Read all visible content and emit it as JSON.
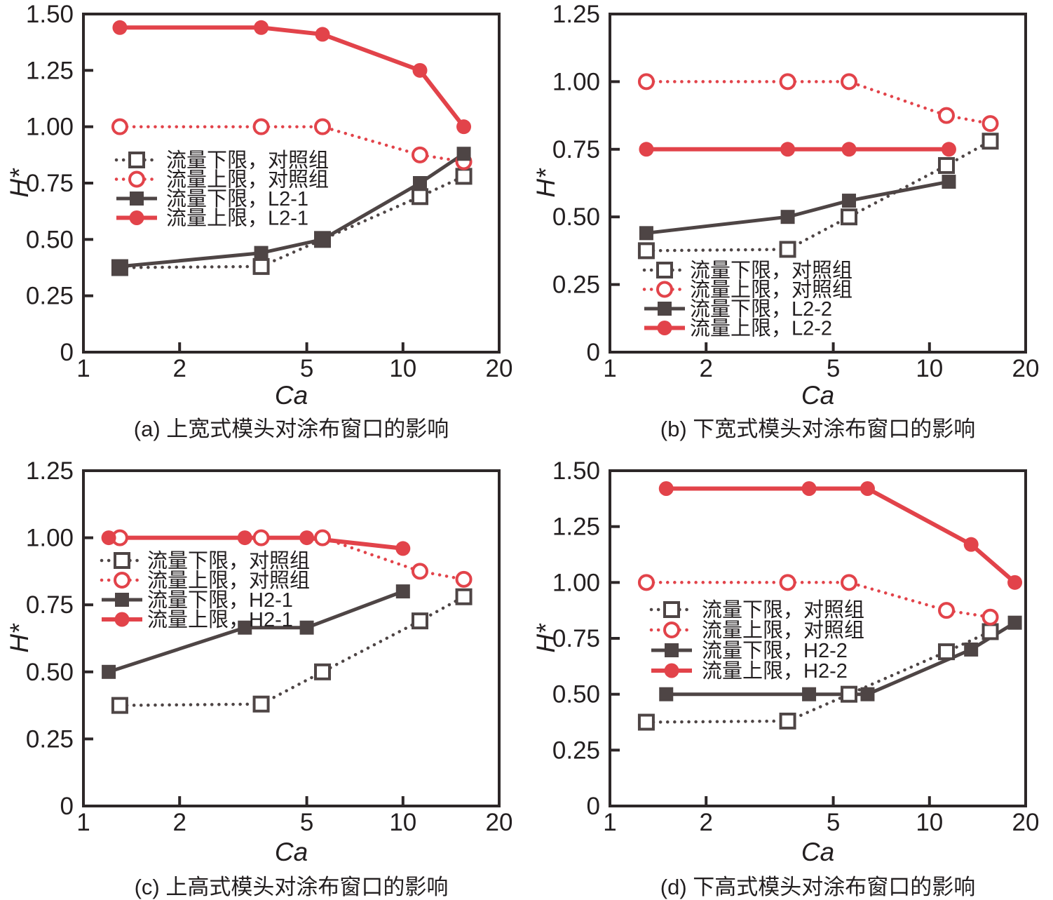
{
  "figure_title": "",
  "colors": {
    "red": "#e2434a",
    "dark": "#4e4545",
    "axis": "#2d2728",
    "text": "#231f20",
    "background": "#ffffff"
  },
  "chart_data": [
    {
      "id": "a",
      "type": "line",
      "caption": "(a) 上宽式模头对涂布窗口的影响",
      "xlabel": "Ca",
      "ylabel": "H*",
      "xscale": "log",
      "xlim": [
        1,
        20
      ],
      "xticks": [
        1,
        2,
        5,
        10,
        20
      ],
      "ylim": [
        0,
        1.5
      ],
      "yticks": [
        0,
        0.25,
        0.5,
        0.75,
        1.0,
        1.25,
        1.5
      ],
      "ytick_labels": [
        "0",
        "0.25",
        "0.50",
        "0.75",
        "1.00",
        "1.25",
        "1.50"
      ],
      "grid": false,
      "legend_position": "upper-left-inside",
      "series": [
        {
          "name": "流量下限，对照组",
          "line": "dotted",
          "color": "dark",
          "marker": "square-open",
          "x": [
            1.3,
            3.6,
            5.6,
            11.3,
            15.5
          ],
          "y": [
            0.375,
            0.38,
            0.5,
            0.69,
            0.78
          ]
        },
        {
          "name": "流量上限，对照组",
          "line": "dotted",
          "color": "red",
          "marker": "circle-open",
          "x": [
            1.3,
            3.6,
            5.6,
            11.3,
            15.5
          ],
          "y": [
            1.0,
            1.0,
            1.0,
            0.875,
            0.845
          ]
        },
        {
          "name": "流量下限，L2-1",
          "line": "solid",
          "color": "dark",
          "marker": "square-filled",
          "x": [
            1.3,
            3.6,
            5.6,
            11.3,
            15.5
          ],
          "y": [
            0.38,
            0.44,
            0.5,
            0.75,
            0.88
          ]
        },
        {
          "name": "流量上限，L2-1",
          "line": "solid",
          "color": "red",
          "marker": "circle-filled",
          "x": [
            1.3,
            3.6,
            5.6,
            11.3,
            15.5
          ],
          "y": [
            1.44,
            1.44,
            1.41,
            1.25,
            1.0
          ]
        }
      ]
    },
    {
      "id": "b",
      "type": "line",
      "caption": "(b) 下宽式模头对涂布窗口的影响",
      "xlabel": "Ca",
      "ylabel": "H*",
      "xscale": "log",
      "xlim": [
        1,
        20
      ],
      "xticks": [
        1,
        2,
        5,
        10,
        20
      ],
      "ylim": [
        0,
        1.25
      ],
      "yticks": [
        0,
        0.25,
        0.5,
        0.75,
        1.0,
        1.25
      ],
      "ytick_labels": [
        "0",
        "0.25",
        "0.50",
        "0.75",
        "1.00",
        "1.25"
      ],
      "grid": false,
      "legend_position": "lower-left-inside",
      "series": [
        {
          "name": "流量下限，对照组",
          "line": "dotted",
          "color": "dark",
          "marker": "square-open",
          "x": [
            1.3,
            3.6,
            5.6,
            11.3,
            15.5
          ],
          "y": [
            0.375,
            0.38,
            0.5,
            0.69,
            0.78
          ]
        },
        {
          "name": "流量上限，对照组",
          "line": "dotted",
          "color": "red",
          "marker": "circle-open",
          "x": [
            1.3,
            3.6,
            5.6,
            11.3,
            15.5
          ],
          "y": [
            1.0,
            1.0,
            1.0,
            0.875,
            0.845
          ]
        },
        {
          "name": "流量下限，L2-2",
          "line": "solid",
          "color": "dark",
          "marker": "square-filled",
          "x": [
            1.3,
            3.6,
            5.6,
            11.5
          ],
          "y": [
            0.44,
            0.5,
            0.56,
            0.63
          ]
        },
        {
          "name": "流量上限，L2-2",
          "line": "solid",
          "color": "red",
          "marker": "circle-filled",
          "x": [
            1.3,
            3.6,
            5.6,
            11.5
          ],
          "y": [
            0.75,
            0.75,
            0.75,
            0.75
          ]
        }
      ]
    },
    {
      "id": "c",
      "type": "line",
      "caption": "(c) 上高式模头对涂布窗口的影响",
      "xlabel": "Ca",
      "ylabel": "H*",
      "xscale": "log",
      "xlim": [
        1,
        20
      ],
      "xticks": [
        1,
        2,
        5,
        10,
        20
      ],
      "ylim": [
        0,
        1.25
      ],
      "yticks": [
        0,
        0.25,
        0.5,
        0.75,
        1.0,
        1.25
      ],
      "ytick_labels": [
        "0",
        "0.25",
        "0.50",
        "0.75",
        "1.00",
        "1.25"
      ],
      "grid": false,
      "legend_position": "upper-left-inside",
      "series": [
        {
          "name": "流量下限，对照组",
          "line": "dotted",
          "color": "dark",
          "marker": "square-open",
          "x": [
            1.3,
            3.6,
            5.6,
            11.3,
            15.5
          ],
          "y": [
            0.375,
            0.38,
            0.5,
            0.69,
            0.78
          ]
        },
        {
          "name": "流量上限，对照组",
          "line": "dotted",
          "color": "red",
          "marker": "circle-open",
          "x": [
            1.3,
            3.6,
            5.6,
            11.3,
            15.5
          ],
          "y": [
            1.0,
            1.0,
            1.0,
            0.875,
            0.845
          ]
        },
        {
          "name": "流量下限，H2-1",
          "line": "solid",
          "color": "dark",
          "marker": "square-filled",
          "x": [
            1.2,
            3.2,
            5.0,
            10.0
          ],
          "y": [
            0.5,
            0.665,
            0.665,
            0.8
          ]
        },
        {
          "name": "流量上限，H2-1",
          "line": "solid",
          "color": "red",
          "marker": "circle-filled",
          "x": [
            1.2,
            3.2,
            5.0,
            10.0
          ],
          "y": [
            1.0,
            1.0,
            1.0,
            0.96
          ]
        }
      ]
    },
    {
      "id": "d",
      "type": "line",
      "caption": "(d) 下高式模头对涂布窗口的影响",
      "xlabel": "Ca",
      "ylabel": "H*",
      "xscale": "log",
      "xlim": [
        1,
        20
      ],
      "xticks": [
        1,
        2,
        5,
        10,
        20
      ],
      "ylim": [
        0,
        1.5
      ],
      "yticks": [
        0,
        0.25,
        0.5,
        0.75,
        1.0,
        1.25,
        1.5
      ],
      "ytick_labels": [
        "0",
        "0.25",
        "0.50",
        "0.75",
        "1.00",
        "1.25",
        "1.50"
      ],
      "grid": false,
      "legend_position": "middle-left-inside",
      "series": [
        {
          "name": "流量下限，对照组",
          "line": "dotted",
          "color": "dark",
          "marker": "square-open",
          "x": [
            1.3,
            3.6,
            5.6,
            11.3,
            15.5
          ],
          "y": [
            0.375,
            0.38,
            0.5,
            0.69,
            0.78
          ]
        },
        {
          "name": "流量上限，对照组",
          "line": "dotted",
          "color": "red",
          "marker": "circle-open",
          "x": [
            1.3,
            3.6,
            5.6,
            11.3,
            15.5
          ],
          "y": [
            1.0,
            1.0,
            1.0,
            0.875,
            0.845
          ]
        },
        {
          "name": "流量下限，H2-2",
          "line": "solid",
          "color": "dark",
          "marker": "square-filled",
          "x": [
            1.5,
            4.2,
            6.4,
            13.5,
            18.5
          ],
          "y": [
            0.5,
            0.5,
            0.5,
            0.7,
            0.82
          ]
        },
        {
          "name": "流量上限，H2-2",
          "line": "solid",
          "color": "red",
          "marker": "circle-filled",
          "x": [
            1.5,
            4.2,
            6.4,
            13.5,
            18.5
          ],
          "y": [
            1.42,
            1.42,
            1.42,
            1.17,
            1.0
          ]
        }
      ]
    }
  ]
}
